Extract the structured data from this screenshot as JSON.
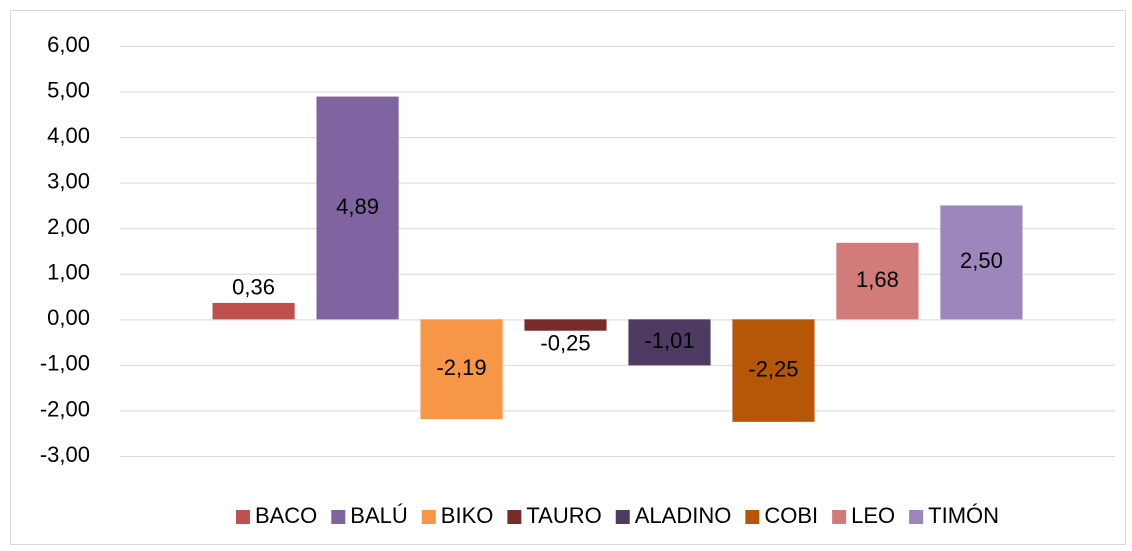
{
  "chart_data": {
    "type": "bar",
    "categories": [
      null
    ],
    "series": [
      {
        "name": "BACO",
        "color": "#c0504d",
        "values": [
          0.36
        ],
        "value_labels": [
          "0,36"
        ]
      },
      {
        "name": "BALÚ",
        "color": "#8064a2",
        "values": [
          4.89
        ],
        "value_labels": [
          "4,89"
        ]
      },
      {
        "name": "BIKO",
        "color": "#f79646",
        "values": [
          -2.19
        ],
        "value_labels": [
          "-2,19"
        ]
      },
      {
        "name": "TAURO",
        "color": "#772c2a",
        "values": [
          -0.25
        ],
        "value_labels": [
          "-0,25"
        ]
      },
      {
        "name": "ALADINO",
        "color": "#4d3b62",
        "values": [
          -1.01
        ],
        "value_labels": [
          "-1,01"
        ]
      },
      {
        "name": "COBI",
        "color": "#b65708",
        "values": [
          -2.25
        ],
        "value_labels": [
          "-2,25"
        ]
      },
      {
        "name": "LEO",
        "color": "#d17b7a",
        "values": [
          1.68
        ],
        "value_labels": [
          "1,68"
        ]
      },
      {
        "name": "TIMÓN",
        "color": "#9c86bb",
        "values": [
          2.5
        ],
        "value_labels": [
          "2,50"
        ]
      }
    ],
    "ylim": [
      -3,
      6
    ],
    "yticks": [
      {
        "value": -3,
        "label": "-3,00"
      },
      {
        "value": -2,
        "label": "-2,00"
      },
      {
        "value": -1,
        "label": "-1,00"
      },
      {
        "value": 0,
        "label": "0,00"
      },
      {
        "value": 1,
        "label": "1,00"
      },
      {
        "value": 2,
        "label": "2,00"
      },
      {
        "value": 3,
        "label": "3,00"
      },
      {
        "value": 4,
        "label": "4,00"
      },
      {
        "value": 5,
        "label": "5,00"
      },
      {
        "value": 6,
        "label": "6,00"
      }
    ],
    "grid": true,
    "legend": "bottom"
  }
}
